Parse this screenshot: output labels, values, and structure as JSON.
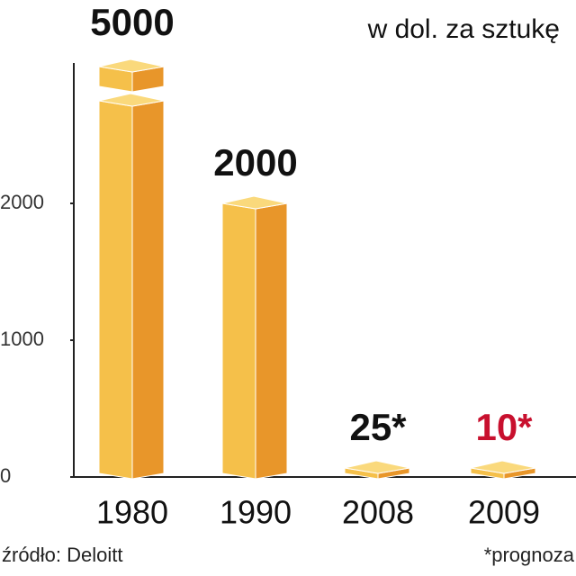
{
  "chart_data": {
    "type": "bar",
    "unit": "w dol. za sztukę",
    "categories": [
      "1980",
      "1990",
      "2008",
      "2009"
    ],
    "values": [
      5000,
      2000,
      25,
      10
    ],
    "value_labels": [
      "5000",
      "2000",
      "25*",
      "10*"
    ],
    "label_colors": [
      "#111111",
      "#111111",
      "#111111",
      "#c8102e"
    ],
    "colors": {
      "front": "#f5c04a",
      "side": "#e8962a",
      "top": "#fad97c"
    },
    "ylim": [
      0,
      3000
    ],
    "yticks": [
      0,
      1000,
      2000
    ],
    "axis_break": true,
    "source": "źródło: Deloitt",
    "note": "*prognoza"
  }
}
